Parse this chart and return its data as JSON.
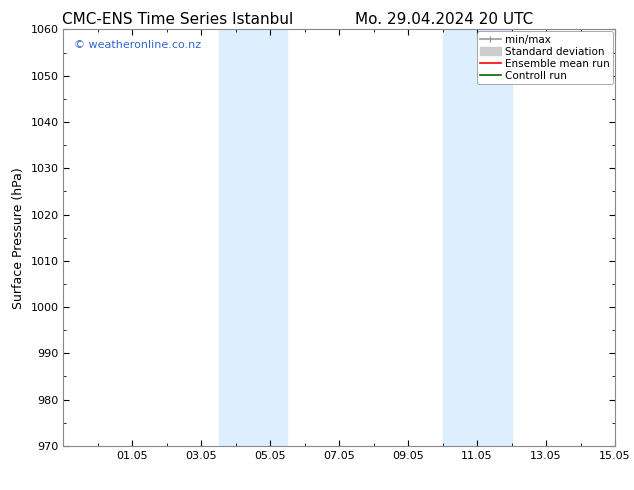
{
  "title_left": "CMC-ENS Time Series Istanbul",
  "title_right": "Mo. 29.04.2024 20 UTC",
  "ylabel": "Surface Pressure (hPa)",
  "ylim": [
    970,
    1060
  ],
  "yticks": [
    970,
    980,
    990,
    1000,
    1010,
    1020,
    1030,
    1040,
    1050,
    1060
  ],
  "xlim": [
    0,
    16
  ],
  "xtick_labels": [
    "01.05",
    "03.05",
    "05.05",
    "07.05",
    "09.05",
    "11.05",
    "13.05",
    "15.05"
  ],
  "xtick_positions": [
    2,
    4,
    6,
    8,
    10,
    12,
    14,
    16
  ],
  "shaded_bands": [
    {
      "x_start": 4.5,
      "x_end": 6.5,
      "color": "#ddeeff"
    },
    {
      "x_start": 11.0,
      "x_end": 13.0,
      "color": "#ddeeff"
    }
  ],
  "watermark": "© weatheronline.co.nz",
  "watermark_color": "#3366cc",
  "legend_items": [
    {
      "label": "min/max",
      "color": "#999999",
      "lw": 1.2,
      "ls": "-",
      "type": "line_caps"
    },
    {
      "label": "Standard deviation",
      "color": "#cccccc",
      "lw": 8,
      "ls": "-",
      "type": "patch"
    },
    {
      "label": "Ensemble mean run",
      "color": "#ff0000",
      "lw": 1.2,
      "ls": "-",
      "type": "line"
    },
    {
      "label": "Controll run",
      "color": "#006600",
      "lw": 1.2,
      "ls": "-",
      "type": "line"
    }
  ],
  "bg_color": "#ffffff",
  "plot_bg_color": "#ffffff",
  "spine_color": "#888888",
  "title_fontsize": 11,
  "axis_label_fontsize": 9,
  "tick_fontsize": 8,
  "legend_fontsize": 7.5
}
